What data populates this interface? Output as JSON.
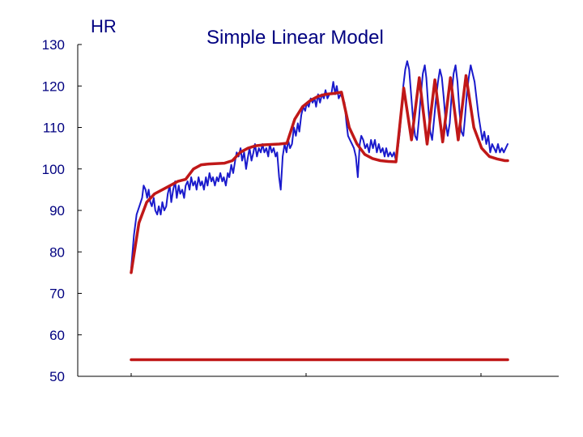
{
  "chart_data": {
    "type": "line",
    "title": "Simple Linear Model",
    "ylabel": "HR",
    "xlabel": "",
    "ylim": [
      50,
      130
    ],
    "yticks": [
      130,
      120,
      110,
      100,
      90,
      80,
      70,
      60,
      50
    ],
    "xlim": [
      0,
      100
    ],
    "grid": false,
    "series": [
      {
        "color": "#1a1acc",
        "points": [
          [
            0,
            76
          ],
          [
            0.7,
            84
          ],
          [
            1.4,
            89
          ],
          [
            2.1,
            91
          ],
          [
            2.8,
            93
          ],
          [
            3.2,
            96
          ],
          [
            3.7,
            95
          ],
          [
            4.1,
            93
          ],
          [
            4.5,
            95
          ],
          [
            4.9,
            92
          ],
          [
            5.3,
            91
          ],
          [
            5.8,
            93
          ],
          [
            6.2,
            90
          ],
          [
            6.7,
            89
          ],
          [
            7.1,
            91
          ],
          [
            7.6,
            89
          ],
          [
            8,
            92
          ],
          [
            8.5,
            90
          ],
          [
            9,
            91
          ],
          [
            9.4,
            94
          ],
          [
            9.9,
            96
          ],
          [
            10.3,
            92
          ],
          [
            10.8,
            95
          ],
          [
            11.3,
            97
          ],
          [
            11.7,
            93
          ],
          [
            12.2,
            96
          ],
          [
            12.6,
            94
          ],
          [
            13.1,
            95
          ],
          [
            13.6,
            93
          ],
          [
            14,
            96
          ],
          [
            14.5,
            97
          ],
          [
            15,
            95
          ],
          [
            15.4,
            98
          ],
          [
            15.9,
            96
          ],
          [
            16.4,
            97
          ],
          [
            16.8,
            95
          ],
          [
            17.3,
            98
          ],
          [
            17.8,
            96
          ],
          [
            18.2,
            97
          ],
          [
            18.7,
            95
          ],
          [
            19.2,
            98
          ],
          [
            19.6,
            96
          ],
          [
            20.1,
            99
          ],
          [
            20.6,
            97
          ],
          [
            21,
            98
          ],
          [
            21.5,
            96
          ],
          [
            22,
            98
          ],
          [
            22.4,
            97
          ],
          [
            22.9,
            99
          ],
          [
            23.4,
            97
          ],
          [
            23.8,
            98
          ],
          [
            24.3,
            96
          ],
          [
            24.8,
            99
          ],
          [
            25.2,
            98
          ],
          [
            25.7,
            101
          ],
          [
            26.2,
            99
          ],
          [
            26.7,
            102
          ],
          [
            27.1,
            104
          ],
          [
            27.6,
            103
          ],
          [
            28.1,
            105
          ],
          [
            28.5,
            102
          ],
          [
            29,
            104
          ],
          [
            29.5,
            100
          ],
          [
            30,
            103
          ],
          [
            30.4,
            105
          ],
          [
            30.9,
            102
          ],
          [
            31.4,
            104
          ],
          [
            31.8,
            106
          ],
          [
            32.3,
            103
          ],
          [
            32.8,
            105
          ],
          [
            33.3,
            104
          ],
          [
            33.7,
            106
          ],
          [
            34.2,
            104
          ],
          [
            34.7,
            105
          ],
          [
            35.2,
            103
          ],
          [
            35.6,
            106
          ],
          [
            36.1,
            104
          ],
          [
            36.6,
            105
          ],
          [
            37.1,
            103
          ],
          [
            37.5,
            104
          ],
          [
            38,
            98
          ],
          [
            38.4,
            95
          ],
          [
            38.9,
            103
          ],
          [
            39.4,
            106
          ],
          [
            39.9,
            104
          ],
          [
            40.3,
            107
          ],
          [
            40.8,
            105
          ],
          [
            41.3,
            106
          ],
          [
            41.8,
            110
          ],
          [
            42.3,
            108
          ],
          [
            42.8,
            111
          ],
          [
            43.2,
            109
          ],
          [
            43.7,
            113
          ],
          [
            44.2,
            115
          ],
          [
            44.7,
            114
          ],
          [
            45.1,
            116
          ],
          [
            45.6,
            115
          ],
          [
            46.1,
            117
          ],
          [
            46.6,
            116
          ],
          [
            47.1,
            117
          ],
          [
            47.5,
            115
          ],
          [
            48,
            118
          ],
          [
            48.5,
            116
          ],
          [
            49,
            118
          ],
          [
            49.5,
            117
          ],
          [
            49.9,
            119
          ],
          [
            50.4,
            117
          ],
          [
            50.9,
            118
          ],
          [
            51.4,
            118
          ],
          [
            51.9,
            121
          ],
          [
            52.4,
            118
          ],
          [
            52.8,
            120
          ],
          [
            53.3,
            117
          ],
          [
            53.8,
            118
          ],
          [
            54.3,
            117
          ],
          [
            54.8,
            116
          ],
          [
            55.3,
            111
          ],
          [
            55.7,
            108
          ],
          [
            56.2,
            107
          ],
          [
            56.7,
            106
          ],
          [
            57.2,
            105
          ],
          [
            57.7,
            103
          ],
          [
            58.2,
            98
          ],
          [
            58.7,
            106
          ],
          [
            59.1,
            108
          ],
          [
            59.6,
            107
          ],
          [
            60.1,
            105
          ],
          [
            60.6,
            106
          ],
          [
            61.1,
            104
          ],
          [
            61.6,
            107
          ],
          [
            62.1,
            105
          ],
          [
            62.6,
            107
          ],
          [
            63.1,
            104
          ],
          [
            63.6,
            106
          ],
          [
            64.1,
            104
          ],
          [
            64.6,
            105
          ],
          [
            65.1,
            103
          ],
          [
            65.5,
            105
          ],
          [
            66,
            103
          ],
          [
            66.5,
            104
          ],
          [
            67,
            103
          ],
          [
            67.5,
            104
          ],
          [
            68,
            102
          ],
          [
            68.5,
            105
          ],
          [
            69,
            109
          ],
          [
            69.4,
            114
          ],
          [
            69.9,
            120
          ],
          [
            70.4,
            124
          ],
          [
            70.9,
            126
          ],
          [
            71.4,
            124
          ],
          [
            71.9,
            118
          ],
          [
            72.4,
            112
          ],
          [
            72.9,
            108
          ],
          [
            73.4,
            107
          ],
          [
            73.9,
            112
          ],
          [
            74.4,
            118
          ],
          [
            74.9,
            123
          ],
          [
            75.4,
            125
          ],
          [
            75.8,
            122
          ],
          [
            76.3,
            115
          ],
          [
            76.8,
            109
          ],
          [
            77.3,
            107
          ],
          [
            77.8,
            112
          ],
          [
            78.3,
            117
          ],
          [
            78.8,
            121
          ],
          [
            79.3,
            124
          ],
          [
            79.8,
            122
          ],
          [
            80.3,
            117
          ],
          [
            80.8,
            111
          ],
          [
            81.3,
            108
          ],
          [
            81.8,
            111
          ],
          [
            82.3,
            118
          ],
          [
            82.8,
            123
          ],
          [
            83.3,
            125
          ],
          [
            83.8,
            121
          ],
          [
            84.3,
            114
          ],
          [
            84.8,
            109
          ],
          [
            85.3,
            108
          ],
          [
            85.7,
            112
          ],
          [
            86.2,
            118
          ],
          [
            86.7,
            122
          ],
          [
            87.2,
            125
          ],
          [
            87.7,
            123
          ],
          [
            88.2,
            121
          ],
          [
            88.7,
            117
          ],
          [
            89.2,
            113
          ],
          [
            89.7,
            110
          ],
          [
            90.2,
            107
          ],
          [
            90.7,
            109
          ],
          [
            91.2,
            106
          ],
          [
            91.7,
            108
          ],
          [
            92.2,
            104
          ],
          [
            92.7,
            106
          ],
          [
            93.2,
            105
          ],
          [
            93.7,
            104
          ],
          [
            94.2,
            106
          ],
          [
            94.7,
            104
          ],
          [
            95.2,
            105
          ],
          [
            95.7,
            104
          ],
          [
            96.2,
            105
          ],
          [
            96.7,
            106
          ]
        ]
      },
      {
        "color": "#c01818",
        "points": [
          [
            0,
            75
          ],
          [
            2,
            87
          ],
          [
            4,
            92
          ],
          [
            6,
            94
          ],
          [
            8,
            95
          ],
          [
            10,
            96
          ],
          [
            12,
            97
          ],
          [
            14,
            97.5
          ],
          [
            16,
            100
          ],
          [
            18,
            101
          ],
          [
            20,
            101.2
          ],
          [
            22,
            101.3
          ],
          [
            24,
            101.4
          ],
          [
            26,
            102
          ],
          [
            28,
            104
          ],
          [
            30,
            105
          ],
          [
            32,
            105.6
          ],
          [
            34,
            105.8
          ],
          [
            36,
            105.9
          ],
          [
            38,
            106
          ],
          [
            40,
            106.2
          ],
          [
            42,
            112
          ],
          [
            44,
            115
          ],
          [
            46,
            116.5
          ],
          [
            48,
            117.5
          ],
          [
            50,
            118
          ],
          [
            52,
            118.2
          ],
          [
            54,
            118.5
          ],
          [
            56,
            110
          ],
          [
            58,
            106
          ],
          [
            60,
            103.5
          ],
          [
            62,
            102.5
          ],
          [
            64,
            102
          ],
          [
            66,
            101.8
          ],
          [
            68,
            101.7
          ],
          [
            70,
            119.5
          ],
          [
            72,
            107
          ],
          [
            74,
            122
          ],
          [
            76,
            106
          ],
          [
            78,
            121.5
          ],
          [
            80,
            106.5
          ],
          [
            82,
            122
          ],
          [
            84,
            107
          ],
          [
            86,
            122.5
          ],
          [
            88,
            110
          ],
          [
            90,
            105
          ],
          [
            92,
            103
          ],
          [
            94,
            102.4
          ],
          [
            96,
            102
          ],
          [
            96.7,
            102
          ]
        ]
      },
      {
        "color": "#c01818",
        "points": [
          [
            0,
            54
          ],
          [
            96.7,
            54
          ]
        ]
      }
    ]
  }
}
